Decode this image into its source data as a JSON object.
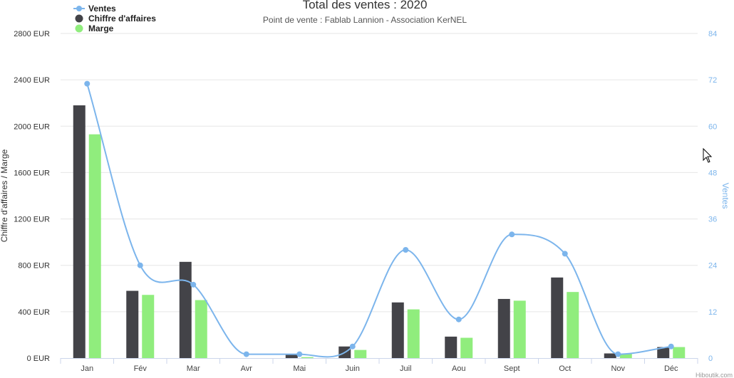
{
  "chart_data": {
    "type": "bar",
    "title": "Total des ventes : 2020",
    "subtitle": "Point de vente : Fablab Lannion - Association KerNEL",
    "categories": [
      "Jan",
      "Fév",
      "Mar",
      "Avr",
      "Mai",
      "Juin",
      "Juil",
      "Aou",
      "Sept",
      "Oct",
      "Nov",
      "Déc"
    ],
    "series": [
      {
        "name": "Chiffre d'affaires",
        "type": "bar",
        "axis": "left",
        "color": "#434348",
        "values": [
          2180,
          580,
          830,
          0,
          30,
          100,
          480,
          185,
          510,
          695,
          40,
          95
        ]
      },
      {
        "name": "Marge",
        "type": "bar",
        "axis": "left",
        "color": "#90ed7d",
        "values": [
          1930,
          545,
          500,
          0,
          8,
          70,
          420,
          175,
          495,
          570,
          38,
          95
        ]
      },
      {
        "name": "Ventes",
        "type": "spline",
        "axis": "right",
        "color": "#7cb5ec",
        "values": [
          71,
          24,
          19,
          1,
          1,
          3,
          28,
          10,
          32,
          27,
          1,
          3
        ]
      }
    ],
    "y_left": {
      "label": "Chiffre d'affaires / Marge",
      "range": [
        0,
        2800
      ],
      "ticks": [
        "0 EUR",
        "400 EUR",
        "800 EUR",
        "1200 EUR",
        "1600 EUR",
        "2000 EUR",
        "2400 EUR",
        "2800 EUR"
      ]
    },
    "y_right": {
      "label": "Ventes",
      "range": [
        0,
        84
      ],
      "ticks": [
        "0",
        "12",
        "24",
        "36",
        "48",
        "60",
        "72",
        "84"
      ]
    },
    "grid": true,
    "legend": {
      "position": "top-left",
      "items": [
        "Ventes",
        "Chiffre d'affaires",
        "Marge"
      ]
    },
    "credit": "Hiboutik.com"
  }
}
